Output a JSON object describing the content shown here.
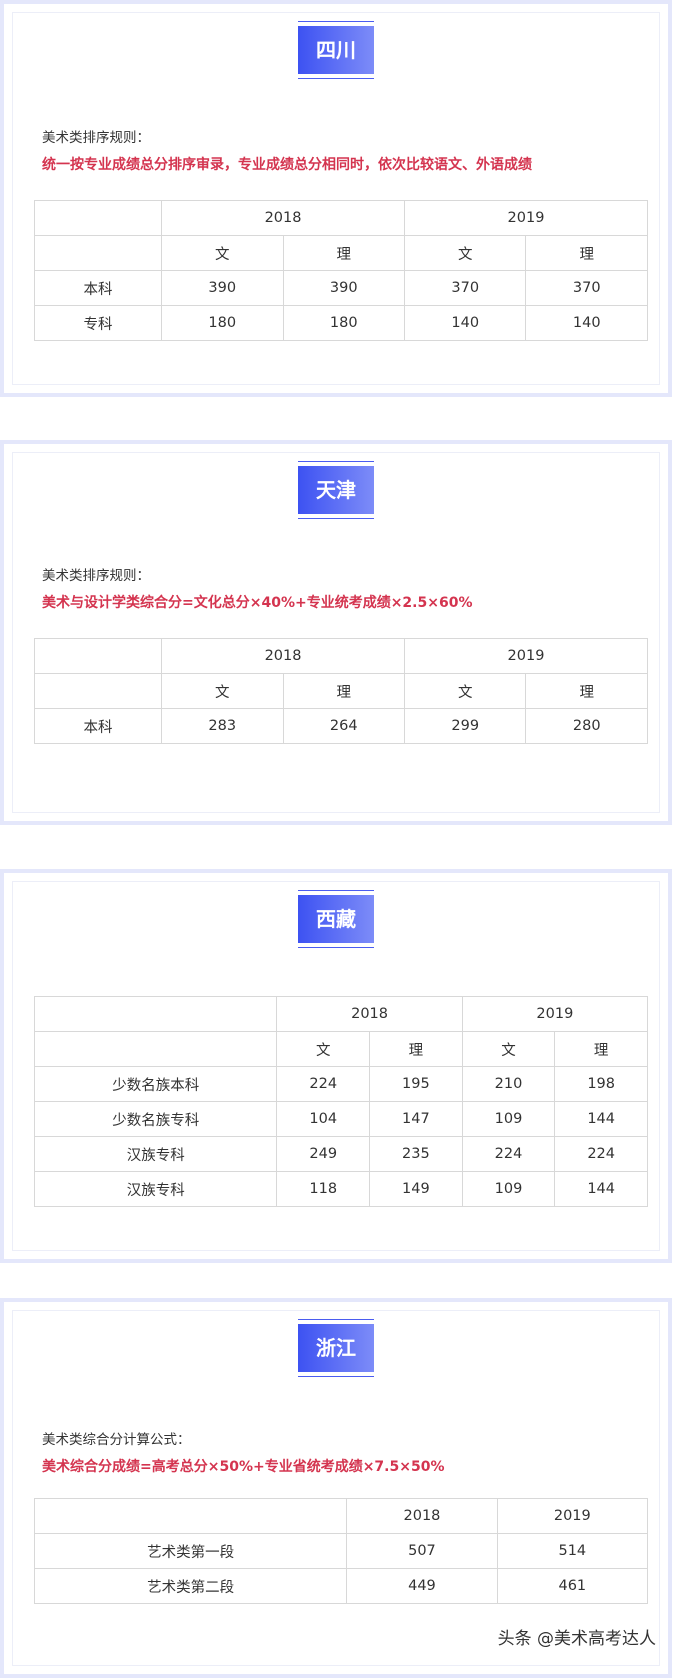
{
  "sections": [
    {
      "title": "四川",
      "rule_label": "美术类排序规则：",
      "rule_text": "统一按专业成绩总分排序审录，专业成绩总分相同时，依次比较语文、外语成绩",
      "table": {
        "years": [
          "2018",
          "2019"
        ],
        "subheads": [
          "文",
          "理",
          "文",
          "理"
        ],
        "rows": [
          {
            "label": "本科",
            "values": [
              390,
              390,
              370,
              370
            ]
          },
          {
            "label": "专科",
            "values": [
              180,
              180,
              140,
              140
            ]
          }
        ]
      }
    },
    {
      "title": "天津",
      "rule_label": "美术类排序规则：",
      "rule_text": "美术与设计学类综合分=文化总分×40%+专业统考成绩×2.5×60%",
      "table": {
        "years": [
          "2018",
          "2019"
        ],
        "subheads": [
          "文",
          "理",
          "文",
          "理"
        ],
        "rows": [
          {
            "label": "本科",
            "values": [
              283,
              264,
              299,
              280
            ]
          }
        ]
      }
    },
    {
      "title": "西藏",
      "table": {
        "years": [
          "2018",
          "2019"
        ],
        "subheads": [
          "文",
          "理",
          "文",
          "理"
        ],
        "rows": [
          {
            "label": "少数名族本科",
            "values": [
              224,
              195,
              210,
              198
            ]
          },
          {
            "label": "少数名族专科",
            "values": [
              104,
              147,
              109,
              144
            ]
          },
          {
            "label": "汉族专科",
            "values": [
              249,
              235,
              224,
              224
            ]
          },
          {
            "label": "汉族专科",
            "values": [
              118,
              149,
              109,
              144
            ]
          }
        ]
      }
    },
    {
      "title": "浙江",
      "rule_label": "美术类综合分计算公式：",
      "rule_text": "美术综合分成绩=高考总分×50%+专业省统考成绩×7.5×50%",
      "table": {
        "years": [
          "2018",
          "2019"
        ],
        "rows": [
          {
            "label": "艺术类第一段",
            "values": [
              507,
              514
            ]
          },
          {
            "label": "艺术类第二段",
            "values": [
              449,
              461
            ]
          }
        ]
      }
    }
  ],
  "watermark": "头条 @美术高考达人"
}
